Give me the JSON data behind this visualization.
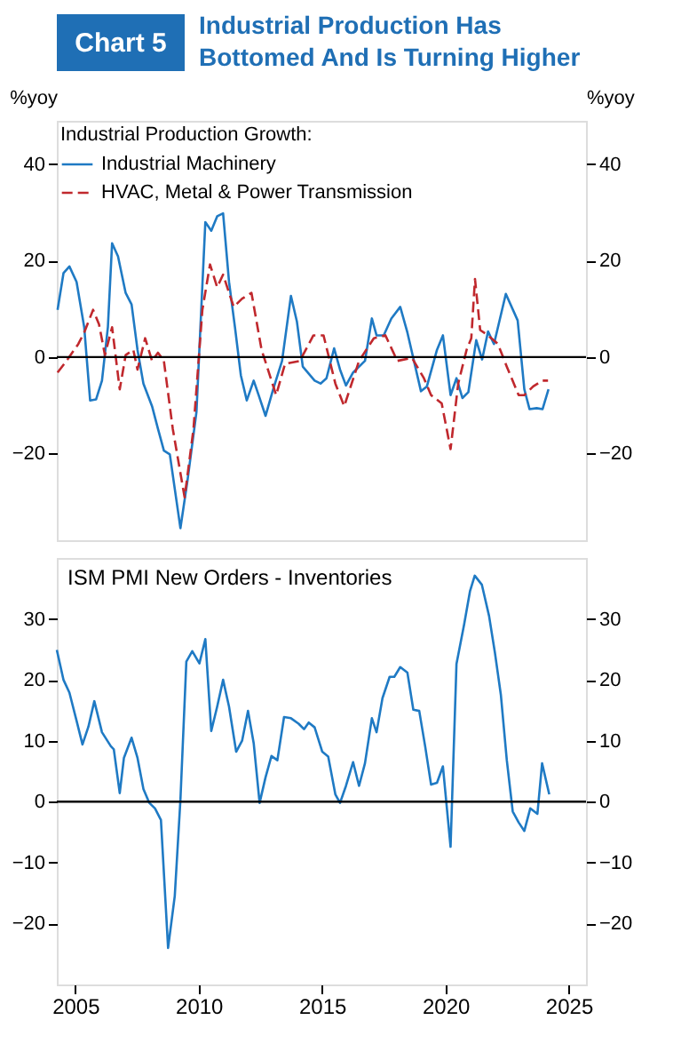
{
  "chart_data": [
    {
      "type": "other",
      "annotations": [
        "Chart 5"
      ],
      "title": "Industrial Production Has\nBottomed And Is Turning Higher"
    },
    {
      "type": "line",
      "legend_title": "Industrial Production Growth:",
      "legend": "top left",
      "ylabel": "%yoy",
      "y2label": "%yoy",
      "xlim": [
        2004.25,
        2025.7
      ],
      "ylim": [
        -38,
        49
      ],
      "yticks": [
        -20,
        0,
        20,
        40
      ],
      "y2lim": [
        -38,
        49
      ],
      "y2ticks": [
        -20,
        0,
        20,
        40
      ],
      "tick_labels": "y",
      "grid": false,
      "ref_lines": [
        {
          "axis": "y",
          "value": 0,
          "color": "#000000"
        }
      ],
      "series": [
        {
          "name": "Industrial Machinery",
          "color": "#1f7ac4",
          "line_style": "solid",
          "x": [
            2004.28,
            2004.52,
            2004.76,
            2005.05,
            2005.36,
            2005.6,
            2005.84,
            2006.08,
            2006.32,
            2006.49,
            2006.73,
            2007.04,
            2007.28,
            2007.52,
            2007.76,
            2008.11,
            2008.35,
            2008.59,
            2008.83,
            2009.26,
            2009.55,
            2009.91,
            2010.27,
            2010.51,
            2010.75,
            2010.99,
            2011.23,
            2011.47,
            2011.71,
            2011.95,
            2012.23,
            2012.43,
            2012.71,
            2013.02,
            2013.38,
            2013.74,
            2013.98,
            2014.22,
            2014.7,
            2014.94,
            2015.18,
            2015.49,
            2015.73,
            2015.97,
            2016.26,
            2016.74,
            2017.02,
            2017.21,
            2017.5,
            2017.81,
            2018.17,
            2018.46,
            2019.01,
            2019.25,
            2019.66,
            2019.9,
            2020.21,
            2020.45,
            2020.69,
            2020.93,
            2021.25,
            2021.49,
            2021.73,
            2021.97,
            2022.45,
            2022.93,
            2023.2,
            2023.41,
            2023.7,
            2023.94,
            2024.18
          ],
          "values": [
            9.8,
            17.4,
            18.8,
            15.6,
            6.2,
            -9,
            -8.8,
            -4.9,
            6.2,
            23.6,
            20.9,
            13.3,
            10.9,
            1.5,
            -5.5,
            -10.2,
            -14.9,
            -19.4,
            -20.2,
            -35.5,
            -25.5,
            -11.4,
            28,
            26.2,
            29.2,
            29.8,
            15.6,
            6.2,
            -3.8,
            -9,
            -4.9,
            -7.9,
            -12.2,
            -6.7,
            -0.8,
            12.7,
            7.4,
            -2,
            -4.9,
            -5.5,
            -4.4,
            1.8,
            -2.6,
            -5.9,
            -3.2,
            -0.8,
            8,
            4.5,
            4.5,
            8,
            10.4,
            5.1,
            -7.1,
            -6.1,
            1.5,
            4.5,
            -7.9,
            -4.4,
            -8.5,
            -7.3,
            3.5,
            -0.5,
            5.3,
            2.7,
            13.1,
            7.6,
            -6.7,
            -10.8,
            -10.6,
            -10.8,
            -6.7
          ]
        },
        {
          "name": "HVAC, Metal & Power Transmission",
          "color": "#c0282d",
          "line_style": "dashed",
          "x": [
            2004.28,
            2004.64,
            2005.12,
            2005.36,
            2005.72,
            2005.96,
            2006.2,
            2006.49,
            2006.8,
            2007.04,
            2007.35,
            2007.52,
            2007.83,
            2008.11,
            2008.35,
            2008.59,
            2008.95,
            2009.43,
            2009.79,
            2010.15,
            2010.46,
            2010.75,
            2010.99,
            2011.42,
            2011.76,
            2012.14,
            2012.55,
            2013.14,
            2013.5,
            2014.1,
            2014.65,
            2015.06,
            2015.54,
            2015.9,
            2016.5,
            2017.1,
            2017.57,
            2018.05,
            2018.65,
            2019.13,
            2019.42,
            2019.85,
            2020.21,
            2020.52,
            2020.86,
            2021.05,
            2021.2,
            2021.41,
            2021.73,
            2022.13,
            2022.49,
            2022.97,
            2023.2,
            2023.56,
            2023.92,
            2024.16
          ],
          "values": [
            -3.2,
            -0.8,
            2.7,
            5.1,
            9.8,
            6.8,
            0.4,
            6.2,
            -6.7,
            0.4,
            1.5,
            -2.6,
            3.9,
            -0.8,
            0.9,
            -0.8,
            -14.9,
            -29.1,
            -14.9,
            9.8,
            19.2,
            14.5,
            17.1,
            10.4,
            12.1,
            13.3,
            1.5,
            -7.9,
            -1.4,
            -0.8,
            4.5,
            4.5,
            -5.5,
            -10.2,
            -0.8,
            3.9,
            4.5,
            -0.8,
            -0.2,
            -4.4,
            -7.9,
            -9.6,
            -19.1,
            -5.5,
            1.5,
            3.9,
            16.2,
            5.6,
            4.5,
            2.7,
            -2,
            -7.9,
            -7.9,
            -6.1,
            -4.9,
            -4.9
          ]
        }
      ]
    },
    {
      "type": "line",
      "title": "ISM PMI New Orders - Inventories",
      "xlim": [
        2004.25,
        2025.7
      ],
      "xticks": [
        2005,
        2010,
        2015,
        2020,
        2025
      ],
      "ylim": [
        -30,
        40
      ],
      "yticks": [
        -20,
        -10,
        0,
        10,
        20,
        30
      ],
      "y2lim": [
        -30,
        40
      ],
      "y2ticks": [
        -20,
        -10,
        0,
        10,
        20,
        30
      ],
      "grid": false,
      "legend": false,
      "ref_lines": [
        {
          "axis": "y",
          "value": 0,
          "color": "#000000"
        }
      ],
      "series": [
        {
          "color": "#1f7ac4",
          "line_style": "solid",
          "x": [
            2004.25,
            2004.52,
            2004.76,
            2005.05,
            2005.29,
            2005.53,
            2005.77,
            2006.08,
            2006.44,
            2006.56,
            2006.8,
            2006.97,
            2007.28,
            2007.52,
            2007.76,
            2008.0,
            2008.23,
            2008.47,
            2008.76,
            2009.03,
            2009.26,
            2009.5,
            2009.74,
            2010.03,
            2010.27,
            2010.51,
            2010.75,
            2010.99,
            2011.23,
            2011.52,
            2011.76,
            2012.0,
            2012.23,
            2012.47,
            2012.71,
            2012.95,
            2013.19,
            2013.46,
            2013.74,
            2014.05,
            2014.27,
            2014.46,
            2014.7,
            2015.01,
            2015.25,
            2015.54,
            2015.73,
            2015.97,
            2016.26,
            2016.5,
            2016.74,
            2017.02,
            2017.21,
            2017.45,
            2017.74,
            2017.93,
            2018.17,
            2018.46,
            2018.7,
            2018.94,
            2019.18,
            2019.42,
            2019.66,
            2019.9,
            2020.21,
            2020.45,
            2020.76,
            2021.0,
            2021.19,
            2021.48,
            2021.77,
            2022.01,
            2022.25,
            2022.49,
            2022.73,
            2022.97,
            2023.2,
            2023.44,
            2023.73,
            2023.92,
            2024.21
          ],
          "values": [
            24.9,
            20,
            17.9,
            13.3,
            9.4,
            12.3,
            16.5,
            11.4,
            9.1,
            8.6,
            1.4,
            7.2,
            10.5,
            7.2,
            2.1,
            -0.2,
            -1.1,
            -3,
            -24,
            -15.5,
            0.3,
            23,
            24.7,
            22.7,
            26.7,
            11.6,
            15.6,
            20,
            15.6,
            8.2,
            10,
            14.9,
            9.6,
            -0.2,
            4,
            7.5,
            6.8,
            13.9,
            13.7,
            12.8,
            11.9,
            13,
            12.2,
            8.2,
            7.4,
            1.2,
            -0.2,
            2.6,
            6.5,
            2.6,
            6.3,
            13.7,
            11.4,
            17,
            20.5,
            20.5,
            22.1,
            21.2,
            15.1,
            14.9,
            9.1,
            2.8,
            3.1,
            5.8,
            -7.4,
            22.6,
            29.1,
            34.6,
            37.1,
            35.6,
            30.5,
            24.4,
            17.5,
            6.8,
            -1.6,
            -3.4,
            -4.8,
            -1.1,
            -2,
            6.3,
            1.2
          ]
        }
      ]
    }
  ]
}
